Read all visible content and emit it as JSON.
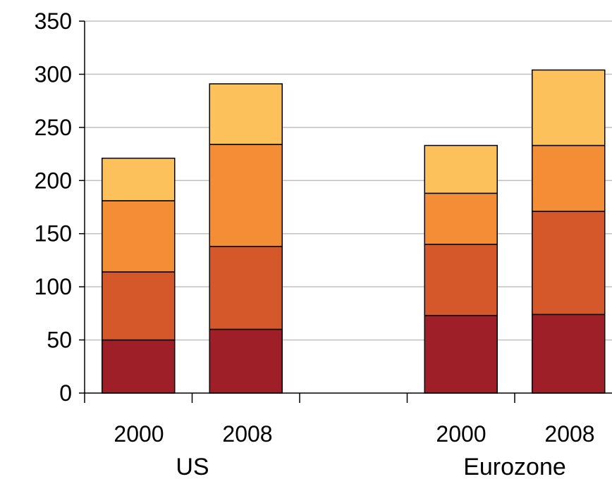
{
  "chart_data": {
    "type": "bar",
    "stacked": true,
    "title": "",
    "xlabel": "",
    "ylabel": "",
    "ylim": [
      0,
      350
    ],
    "yticks": [
      "0",
      "50",
      "100",
      "150",
      "200",
      "250",
      "300",
      "350"
    ],
    "grid": true,
    "legend": "none",
    "groups": [
      {
        "label": "US",
        "categories": [
          "2000",
          "2008"
        ]
      },
      {
        "label": "",
        "categories": []
      },
      {
        "label": "Eurozone",
        "categories": [
          "2000",
          "2008"
        ]
      }
    ],
    "categories": [
      "2000",
      "2008",
      "2000",
      "2008"
    ],
    "series": [
      {
        "color": "#9e1f27",
        "values": [
          50,
          60,
          73,
          74
        ]
      },
      {
        "color": "#d4582a",
        "values": [
          64,
          78,
          67,
          97
        ]
      },
      {
        "color": "#f48e36",
        "values": [
          67,
          96,
          48,
          62
        ]
      },
      {
        "color": "#fcc15b",
        "values": [
          40,
          57,
          45,
          71
        ]
      }
    ]
  }
}
